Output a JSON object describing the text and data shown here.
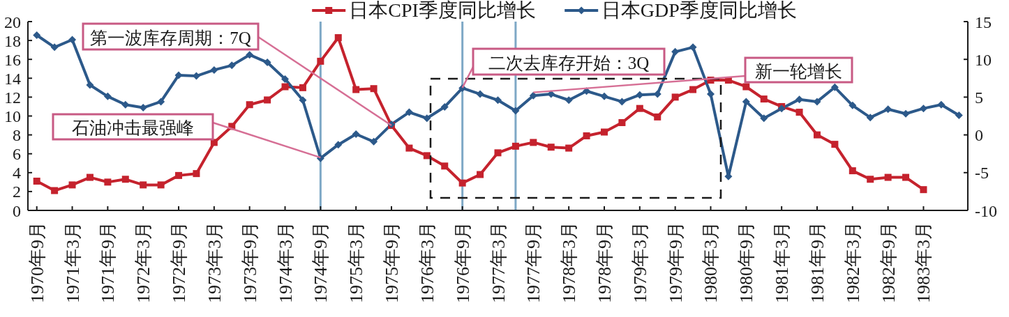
{
  "chart_data": {
    "type": "line",
    "x": [
      "1970-09",
      "1970-12",
      "1971-03",
      "1971-06",
      "1971-09",
      "1971-12",
      "1972-03",
      "1972-06",
      "1972-09",
      "1972-12",
      "1973-03",
      "1973-06",
      "1973-09",
      "1973-12",
      "1974-03",
      "1974-06",
      "1974-09",
      "1974-12",
      "1975-03",
      "1975-06",
      "1975-09",
      "1975-12",
      "1976-03",
      "1976-06",
      "1976-09",
      "1976-12",
      "1977-03",
      "1977-06",
      "1977-09",
      "1977-12",
      "1978-03",
      "1978-06",
      "1978-09",
      "1978-12",
      "1979-03",
      "1979-06",
      "1979-09",
      "1979-12",
      "1980-03",
      "1980-06",
      "1980-09",
      "1980-12",
      "1981-03",
      "1981-06",
      "1981-09",
      "1981-12",
      "1982-03",
      "1982-06",
      "1982-09",
      "1982-12",
      "1983-03",
      "1983-06",
      "1983-09"
    ],
    "xlim": [
      "1970-07-16",
      "1983-10-16"
    ],
    "xticks": [
      {
        "value": "1970-09",
        "label": "1970年9月"
      },
      {
        "value": "1971-03",
        "label": "1971年3月"
      },
      {
        "value": "1971-09",
        "label": "1971年9月"
      },
      {
        "value": "1972-03",
        "label": "1972年3月"
      },
      {
        "value": "1972-09",
        "label": "1972年9月"
      },
      {
        "value": "1973-03",
        "label": "1973年3月"
      },
      {
        "value": "1973-09",
        "label": "1973年9月"
      },
      {
        "value": "1974-03",
        "label": "1974年3月"
      },
      {
        "value": "1974-09",
        "label": "1974年9月"
      },
      {
        "value": "1975-03",
        "label": "1975年3月"
      },
      {
        "value": "1975-09",
        "label": "1975年9月"
      },
      {
        "value": "1976-03",
        "label": "1976年3月"
      },
      {
        "value": "1976-09",
        "label": "1976年9月"
      },
      {
        "value": "1977-03",
        "label": "1977年3月"
      },
      {
        "value": "1977-09",
        "label": "1977年9月"
      },
      {
        "value": "1978-03",
        "label": "1978年3月"
      },
      {
        "value": "1978-09",
        "label": "1978年9月"
      },
      {
        "value": "1979-03",
        "label": "1979年3月"
      },
      {
        "value": "1979-09",
        "label": "1979年9月"
      },
      {
        "value": "1980-03",
        "label": "1980年3月"
      },
      {
        "value": "1980-09",
        "label": "1980年9月"
      },
      {
        "value": "1981-03",
        "label": "1981年3月"
      },
      {
        "value": "1981-09",
        "label": "1981年9月"
      },
      {
        "value": "1982-03",
        "label": "1982年3月"
      },
      {
        "value": "1982-09",
        "label": "1982年9月"
      },
      {
        "value": "1983-03",
        "label": "1983年3月"
      }
    ],
    "ylim": [
      0,
      20
    ],
    "yticks": [
      0,
      2,
      4,
      6,
      8,
      10,
      12,
      14,
      16,
      18,
      20
    ],
    "y2lim": [
      -10,
      15
    ],
    "y2ticks": [
      -10,
      -5,
      0,
      5,
      10,
      15
    ],
    "series": [
      {
        "name": "日本CPI季度同比增长",
        "color": "#c5222d",
        "marker": "square",
        "values": [
          3.1,
          2.1,
          2.7,
          3.5,
          3.0,
          3.3,
          2.7,
          2.7,
          3.7,
          3.9,
          7.2,
          8.9,
          11.2,
          11.7,
          13.1,
          13.0,
          15.8,
          18.3,
          12.8,
          12.9,
          9.0,
          6.6,
          5.8,
          4.7,
          2.9,
          3.8,
          6.1,
          6.8,
          7.2,
          6.7,
          6.6,
          7.9,
          8.3,
          9.3,
          10.8,
          9.9,
          12.0,
          12.8,
          13.8,
          13.8,
          13.1,
          11.8,
          11.0,
          10.4,
          8.0,
          7.0,
          4.2,
          3.3,
          3.5,
          3.5,
          2.2,
          null,
          null
        ]
      },
      {
        "name": "日本GDP季度同比增长",
        "color": "#2c598a",
        "marker": "diamond",
        "axis": "y2",
        "values": [
          13.2,
          11.6,
          12.6,
          6.6,
          5.1,
          4.0,
          3.6,
          4.4,
          7.9,
          7.8,
          8.6,
          9.2,
          10.6,
          9.6,
          7.4,
          4.6,
          -3.1,
          -1.3,
          0.1,
          -0.9,
          1.4,
          3.0,
          2.2,
          3.7,
          6.2,
          5.4,
          4.6,
          3.2,
          5.2,
          5.4,
          4.6,
          5.8,
          5.1,
          4.4,
          5.3,
          5.4,
          11.0,
          11.6,
          5.4,
          -5.5,
          4.4,
          2.2,
          3.5,
          4.7,
          4.4,
          6.3,
          3.9,
          2.3,
          3.4,
          2.8,
          3.5,
          4.0,
          2.6
        ]
      }
    ],
    "legend": "top",
    "ref_lines": [
      {
        "axis": "x",
        "value": "1974-09",
        "color": "#7ea8c6"
      },
      {
        "axis": "x",
        "value": "1976-09",
        "color": "#7ea8c6"
      },
      {
        "axis": "x",
        "value": "1977-06",
        "color": "#7ea8c6"
      }
    ],
    "annotations": [
      {
        "text": "第一波库存周期：7Q",
        "x": "1975-09",
        "y": 9.0
      },
      {
        "text": "石油冲击最强峰",
        "x": "1974-09",
        "y": 5.6
      },
      {
        "text": "二次去库存开始：3Q",
        "x": "1976-09",
        "y": 13.0
      },
      {
        "text": "新一轮增长",
        "x": "1977-09",
        "y": 12.5
      }
    ]
  }
}
